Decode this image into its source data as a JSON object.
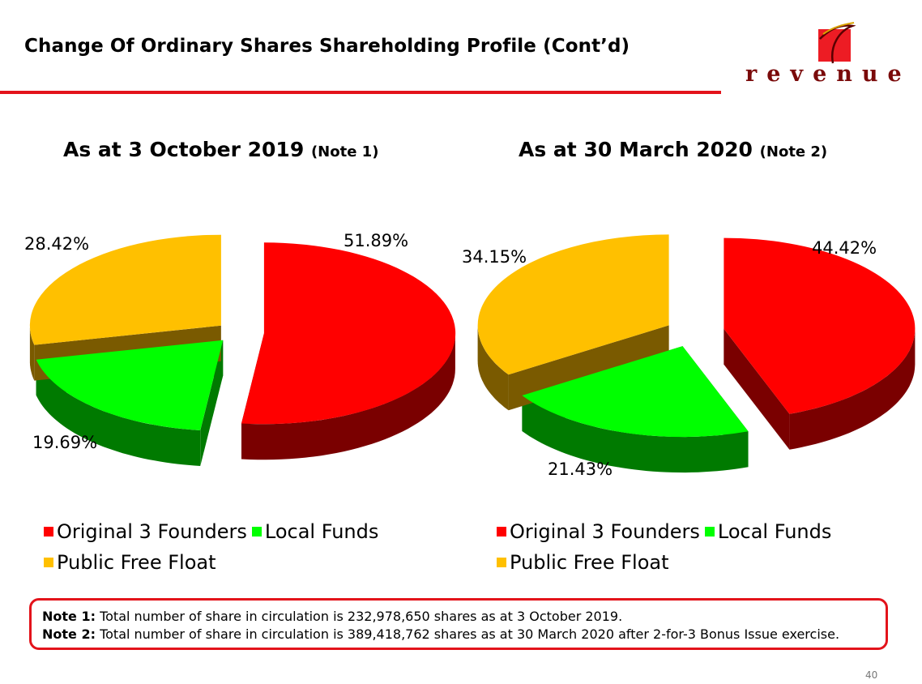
{
  "slide": {
    "title": "Change Of Ordinary Shares Shareholding Profile (Cont’d)",
    "logo_text": "revenue",
    "page_number": "40"
  },
  "colors": {
    "founders": "#ff0000",
    "local_funds": "#00ff00",
    "public_float": "#ffc000",
    "accent": "#e3131b"
  },
  "chart_data": [
    {
      "type": "pie",
      "title": "As at 3 October 2019",
      "title_note": "(Note 1)",
      "categories": [
        "Original 3 Founders",
        "Local Funds",
        "Public Free Float"
      ],
      "values": [
        51.89,
        19.69,
        28.42
      ],
      "labels": [
        "51.89%",
        "19.69%",
        "28.42%"
      ],
      "legend": [
        "Original 3 Founders",
        "Local Funds",
        "Public Free Float"
      ]
    },
    {
      "type": "pie",
      "title": "As at 30 March 2020",
      "title_note": "(Note 2)",
      "categories": [
        "Original 3 Founders",
        "Local Funds",
        "Public Free Float"
      ],
      "values": [
        44.42,
        21.43,
        34.15
      ],
      "labels": [
        "44.42%",
        "21.43%",
        "34.15%"
      ],
      "legend": [
        "Original 3 Founders",
        "Local Funds",
        "Public Free Float"
      ]
    }
  ],
  "notes": [
    {
      "label": "Note 1:",
      "text": " Total number of share in circulation is 232,978,650 shares as at 3 October 2019."
    },
    {
      "label": "Note 2:",
      "text": " Total number of share in circulation is 389,418,762 shares as at 30 March 2020 after 2-for-3 Bonus Issue exercise."
    }
  ]
}
